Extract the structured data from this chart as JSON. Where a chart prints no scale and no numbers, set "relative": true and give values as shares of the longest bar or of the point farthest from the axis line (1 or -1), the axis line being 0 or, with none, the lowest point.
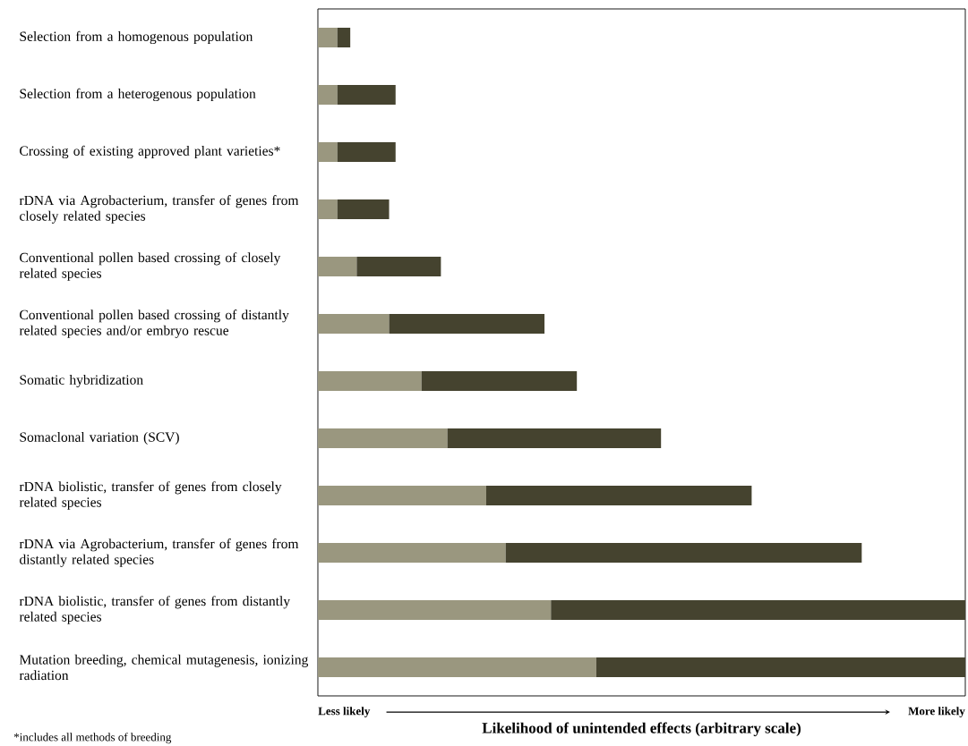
{
  "chart_data": {
    "type": "bar",
    "orientation": "horizontal",
    "stacked": true,
    "relative": true,
    "xlabel": "Likelihood of unintended effects (arbitrary scale)",
    "annotations": [
      "Less likely",
      "More likely",
      "*includes all methods of breeding"
    ],
    "categories": [
      "Selection from a homogenous population",
      "Selection from a heterogenous population",
      "Crossing of existing approved plant varieties*",
      "rDNA via Agrobacterium, transfer of genes from closely related species",
      "Conventional pollen based crossing of closely related species",
      "Conventional pollen based crossing of distantly related species and/or embryo rescue",
      "Somatic hybridization",
      "Somaclonal variation (SCV)",
      "rDNA biolistic, transfer of genes from closely related species",
      "rDNA via Agrobacterium, transfer of genes from distantly related species",
      "rDNA biolistic, transfer of genes from distantly related species",
      "Mutation breeding, chemical mutagenesis, ionizing radiation"
    ],
    "series": [
      {
        "color": "#9a977f",
        "values": [
          0.03,
          0.03,
          0.03,
          0.03,
          0.06,
          0.11,
          0.16,
          0.2,
          0.26,
          0.29,
          0.36,
          0.43
        ]
      },
      {
        "color": "#45432f",
        "values": [
          0.02,
          0.09,
          0.09,
          0.08,
          0.13,
          0.24,
          0.24,
          0.33,
          0.41,
          0.55,
          0.64,
          0.57
        ]
      }
    ]
  }
}
